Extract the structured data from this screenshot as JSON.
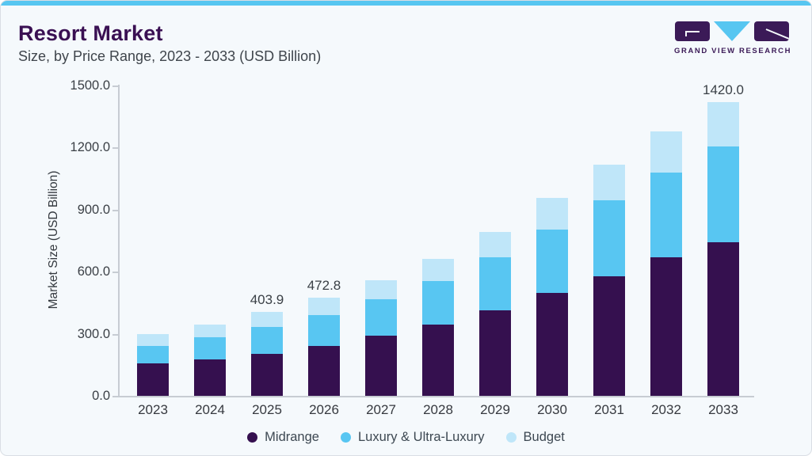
{
  "page": {
    "title": "Resort Market",
    "subtitle": "Size, by Price Range, 2023 - 2033 (USD Billion)"
  },
  "logo": {
    "name": "grand-view-research-logo",
    "text": "GRAND VIEW RESEARCH"
  },
  "colors": {
    "accent_bar": "#57c6f1",
    "title_purple": "#3a1053",
    "card_background": "#f5f9fc",
    "axis_gray": "#c7ccd3",
    "text_dark": "#3b4046"
  },
  "chart_data": {
    "type": "bar",
    "stacked": true,
    "title": "Resort Market Size, by Price Range, 2023 - 2033 (USD Billion)",
    "xlabel": "",
    "ylabel": "Market Size (USD Billion)",
    "ylim": [
      0,
      1500
    ],
    "ytick_step": 300,
    "yticks": [
      "0.0",
      "300.0",
      "600.0",
      "900.0",
      "1200.0",
      "1500.0"
    ],
    "grid": false,
    "legend_position": "bottom",
    "categories": [
      "2023",
      "2024",
      "2025",
      "2026",
      "2027",
      "2028",
      "2029",
      "2030",
      "2031",
      "2032",
      "2033"
    ],
    "series": [
      {
        "name": "Midrange",
        "color": "#35104f",
        "values": [
          155.8,
          174.9,
          203.1,
          241.4,
          289.7,
          344.4,
          412.2,
          496.4,
          579.0,
          668.6,
          743.5
        ]
      },
      {
        "name": "Luxury & Ultra-Luxury",
        "color": "#58c6f2",
        "values": [
          85.3,
          108.3,
          129.5,
          148.7,
          176.0,
          210.5,
          257.6,
          308.5,
          367.4,
          409.5,
          462.2
        ]
      },
      {
        "name": "Budget",
        "color": "#bfe6f9",
        "values": [
          57.4,
          61.2,
          71.3,
          82.7,
          94.1,
          107.2,
          123.6,
          151.9,
          169.9,
          200.2,
          214.3
        ]
      }
    ],
    "totals": [
      298.5,
      344.4,
      403.9,
      472.8,
      559.8,
      662.1,
      793.4,
      956.8,
      1116.3,
      1278.2,
      1420.0
    ],
    "bar_labels": {
      "2025": "403.9",
      "2026": "472.8",
      "2033": "1420.0"
    }
  }
}
